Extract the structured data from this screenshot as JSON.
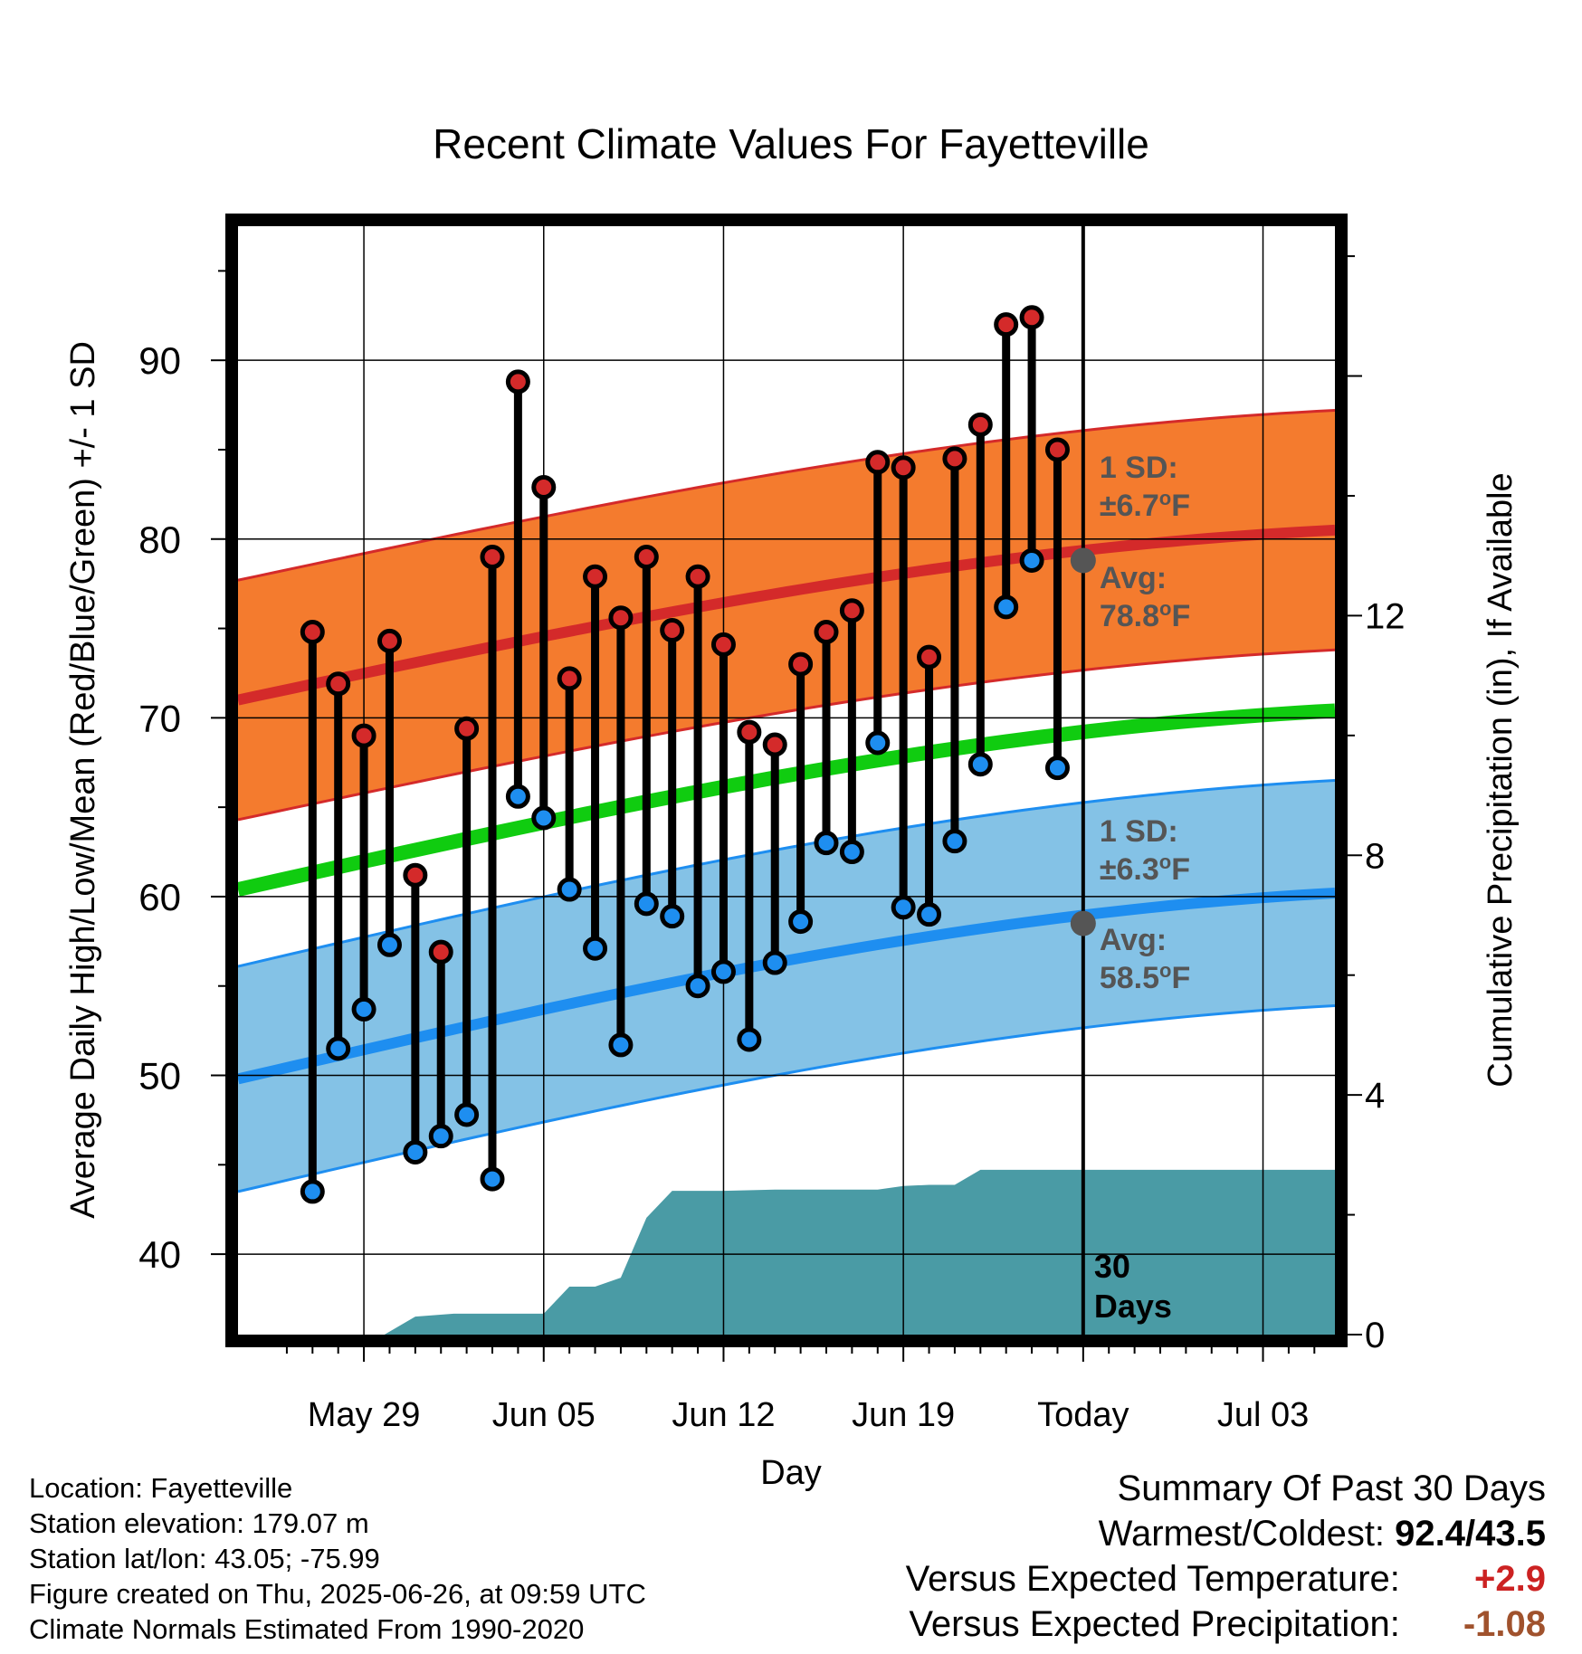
{
  "chart_data": {
    "type": "line",
    "title": "Recent Climate Values For Fayetteville",
    "xlabel": "Day",
    "ylabel": "Average Daily High/Low/Mean (Red/Blue/Green) +/- 1 SD",
    "y2label": "Cumulative Precipitation (in), If Available",
    "ylim": [
      35.5,
      97.5
    ],
    "y2lim": [
      0,
      18.5
    ],
    "yticks": [
      40,
      50,
      60,
      70,
      80,
      90
    ],
    "y2ticks": [
      0,
      4,
      8,
      12
    ],
    "x_range_days": [
      -32.9,
      9.8
    ],
    "x_ticks": [
      {
        "day": -28,
        "label": "May 29"
      },
      {
        "day": -21,
        "label": "Jun 05"
      },
      {
        "day": -14,
        "label": "Jun 12"
      },
      {
        "day": -7,
        "label": "Jun 19"
      },
      {
        "day": 0,
        "label": "Today"
      },
      {
        "day": 7,
        "label": "Jul 03"
      }
    ],
    "today_label": "30\nDays",
    "normal_high": {
      "start": 71.0,
      "end": 80.5,
      "sd": "±6.7°F",
      "avg": "78.8°F",
      "avg_value": 78.8,
      "sd_value": 6.7
    },
    "normal_low": {
      "start": 49.8,
      "end": 60.2,
      "sd": "±6.3°F",
      "avg": "58.5°F",
      "avg_value": 58.5,
      "sd_value": 6.3
    },
    "normal_mean": {
      "start": 60.4,
      "end": 70.4
    },
    "daily": [
      {
        "day": -30,
        "high": 74.8,
        "low": 43.5
      },
      {
        "day": -29,
        "high": 71.9,
        "low": 51.5
      },
      {
        "day": -28,
        "high": 69.0,
        "low": 53.7
      },
      {
        "day": -27,
        "high": 74.3,
        "low": 57.3
      },
      {
        "day": -26,
        "high": 61.2,
        "low": 45.7
      },
      {
        "day": -25,
        "high": 56.9,
        "low": 46.6
      },
      {
        "day": -24,
        "high": 69.4,
        "low": 47.8
      },
      {
        "day": -23,
        "high": 79.0,
        "low": 44.2
      },
      {
        "day": -22,
        "high": 88.8,
        "low": 65.6
      },
      {
        "day": -21,
        "high": 82.9,
        "low": 64.4
      },
      {
        "day": -20,
        "high": 72.2,
        "low": 60.4
      },
      {
        "day": -19,
        "high": 77.9,
        "low": 57.1
      },
      {
        "day": -18,
        "high": 75.6,
        "low": 51.7
      },
      {
        "day": -17,
        "high": 79.0,
        "low": 59.6
      },
      {
        "day": -16,
        "high": 74.9,
        "low": 58.9
      },
      {
        "day": -15,
        "high": 77.9,
        "low": 55.0
      },
      {
        "day": -14,
        "high": 74.1,
        "low": 55.8
      },
      {
        "day": -13,
        "high": 69.2,
        "low": 52.0
      },
      {
        "day": -12,
        "high": 68.5,
        "low": 56.3
      },
      {
        "day": -11,
        "high": 73.0,
        "low": 58.6
      },
      {
        "day": -10,
        "high": 74.8,
        "low": 63.0
      },
      {
        "day": -9,
        "high": 76.0,
        "low": 62.5
      },
      {
        "day": -8,
        "high": 84.3,
        "low": 68.6
      },
      {
        "day": -7,
        "high": 84.0,
        "low": 59.4
      },
      {
        "day": -6,
        "high": 73.4,
        "low": 59.0
      },
      {
        "day": -5,
        "high": 84.5,
        "low": 63.1
      },
      {
        "day": -4,
        "high": 86.4,
        "low": 67.4
      },
      {
        "day": -3,
        "high": 92.0,
        "low": 76.2
      },
      {
        "day": -2,
        "high": 92.4,
        "low": 78.8
      },
      {
        "day": -1,
        "high": 85.0,
        "low": 67.2
      }
    ],
    "precip": {
      "x": [
        -27.2,
        -26.0,
        -24.5,
        -21.0,
        -20.0,
        -19.0,
        -18.0,
        -17.0,
        -16.0,
        -15.0,
        -14.0,
        -12.0,
        -10.0,
        -9.0,
        -8.0,
        -7.0,
        -6.0,
        -5.0,
        -4.0,
        -3.0,
        0,
        9.8
      ],
      "values": [
        0,
        0.3,
        0.35,
        0.35,
        0.8,
        0.8,
        0.95,
        1.95,
        2.4,
        2.4,
        2.4,
        2.42,
        2.42,
        2.42,
        2.42,
        2.48,
        2.5,
        2.5,
        2.75,
        2.75,
        2.75,
        2.75
      ]
    }
  },
  "footer": {
    "location": "Location: Fayetteville",
    "elevation": "Station elevation: 179.07 m",
    "latlon": "Station lat/lon: 43.05; -75.99",
    "created": "Figure created on Thu, 2025-06-26, at 09:59 UTC",
    "normals": "Climate Normals Estimated From 1990-2020"
  },
  "summary": {
    "title": "Summary Of Past 30 Days",
    "warm_cold_label": "Warmest/Coldest:",
    "warm_cold_value": "92.4/43.5",
    "temp_label": "Versus Expected Temperature:",
    "temp_value": "+2.9",
    "precip_label": "Versus Expected Precipitation:",
    "precip_value": "-1.08"
  },
  "colors": {
    "high_band": "#f47b2e",
    "high_line": "#d42a2a",
    "low_band": "#84c2e6",
    "low_line": "#1e8ef0",
    "mean_line": "#10cc10",
    "precip": "#4a9ba5",
    "high_dot": "#d42a2a",
    "low_dot": "#1e8ef0",
    "stat_text": "#555555",
    "temp_value": "#cc2222",
    "precip_value": "#a0522d"
  }
}
